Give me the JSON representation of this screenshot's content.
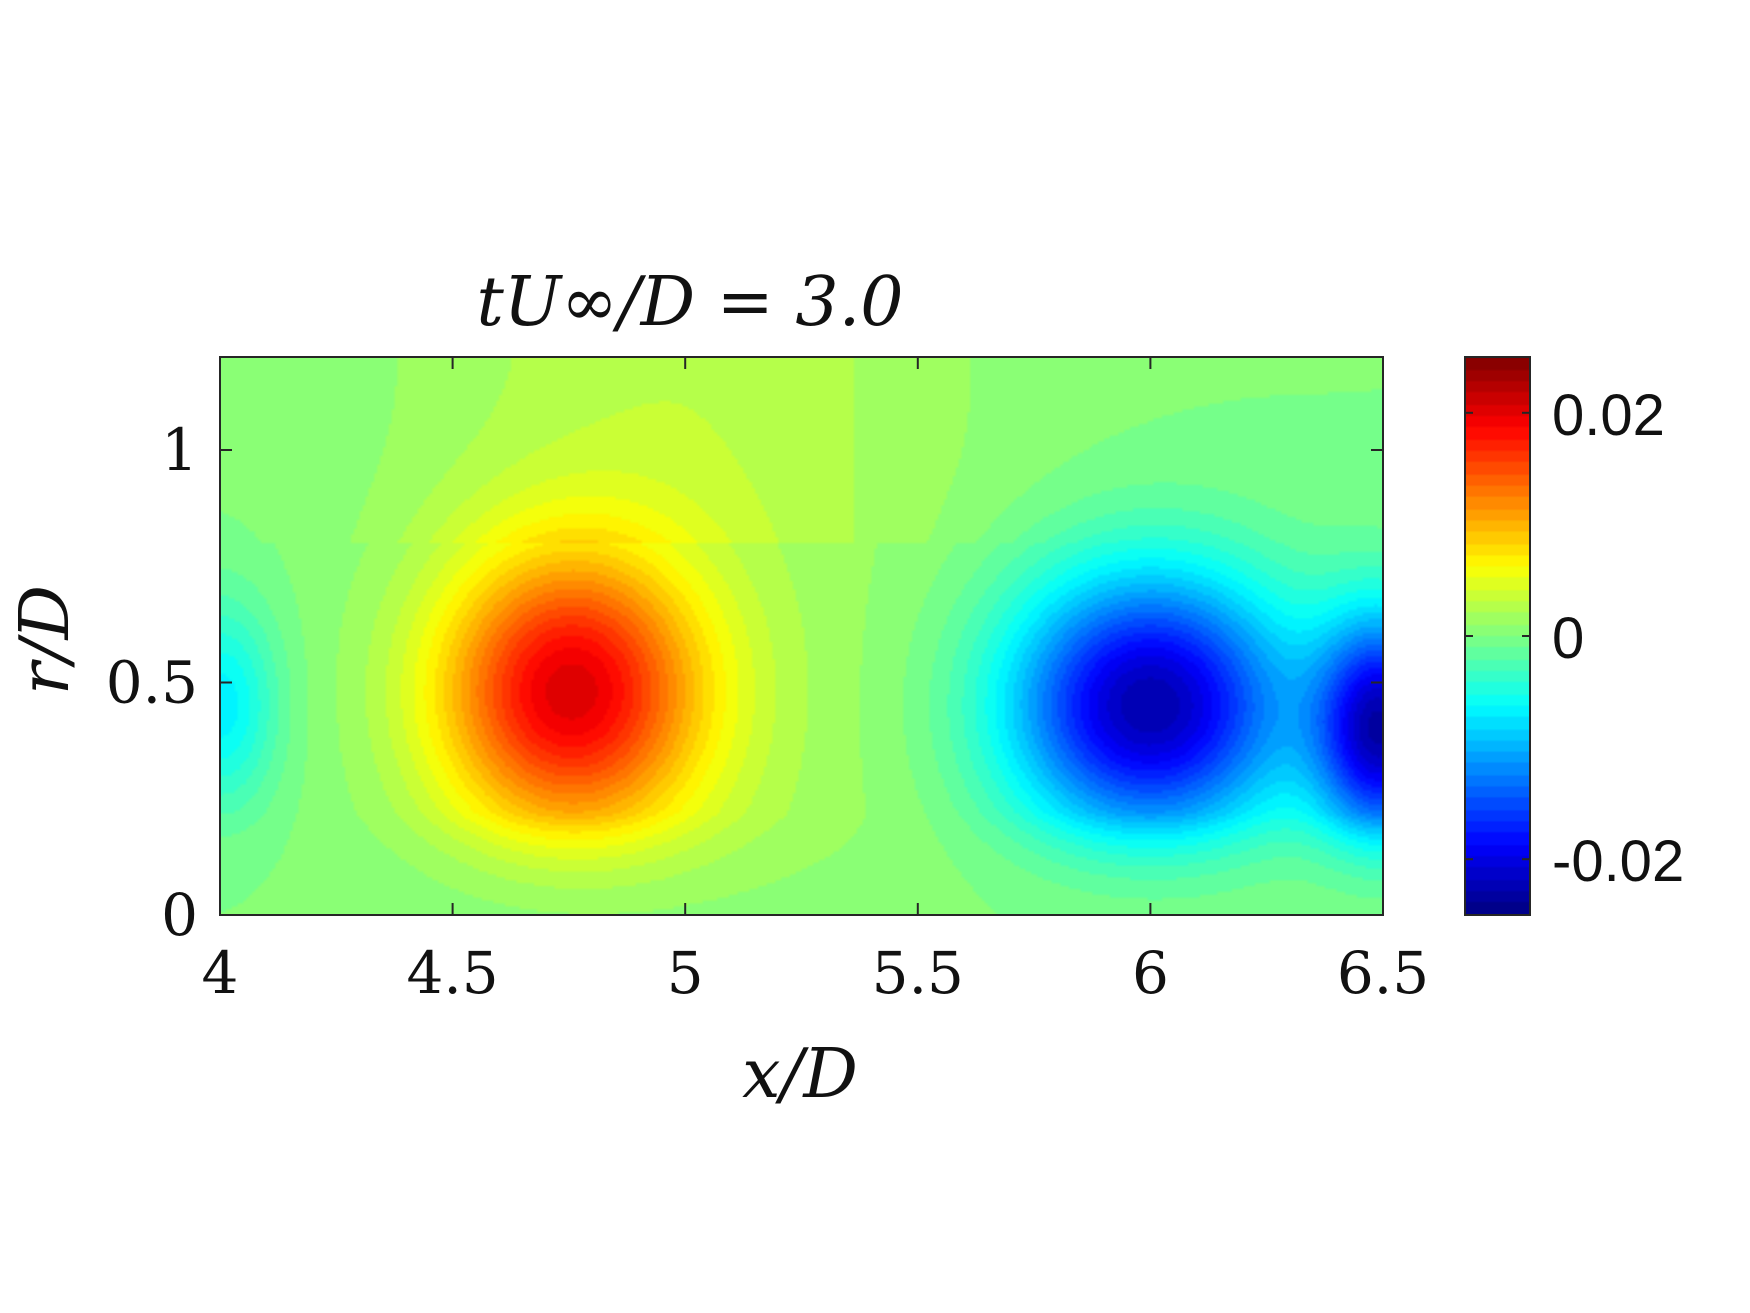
{
  "chart_data": {
    "type": "heatmap",
    "title": "tU∞/D = 3.0",
    "xlabel": "x/D",
    "ylabel": "r/D",
    "xlim": [
      4,
      6.5
    ],
    "ylim": [
      0,
      1.2
    ],
    "xticks": [
      "4",
      "4.5",
      "5",
      "5.5",
      "6",
      "6.5"
    ],
    "xtick_values": [
      4,
      4.5,
      5,
      5.5,
      6,
      6.5
    ],
    "yticks": [
      "0",
      "0.5",
      "1"
    ],
    "ytick_values": [
      0,
      0.5,
      1
    ],
    "colormap": "jet",
    "clim": [
      -0.025,
      0.025
    ],
    "colorbar_ticks": [
      "-0.02",
      "0",
      "0.02"
    ],
    "colorbar_tick_values": [
      -0.02,
      0,
      0.02
    ],
    "grid": false,
    "features": [
      {
        "kind": "positive-peak",
        "x": 4.75,
        "y": 0.48,
        "value": 0.019
      },
      {
        "kind": "negative-peak",
        "x": 6.0,
        "y": 0.45,
        "value": -0.023
      },
      {
        "kind": "negative-edge",
        "x": 6.5,
        "y": 0.4,
        "value": -0.022
      },
      {
        "kind": "weak-negative",
        "x": 4.0,
        "y": 0.45,
        "value": -0.007
      }
    ]
  }
}
